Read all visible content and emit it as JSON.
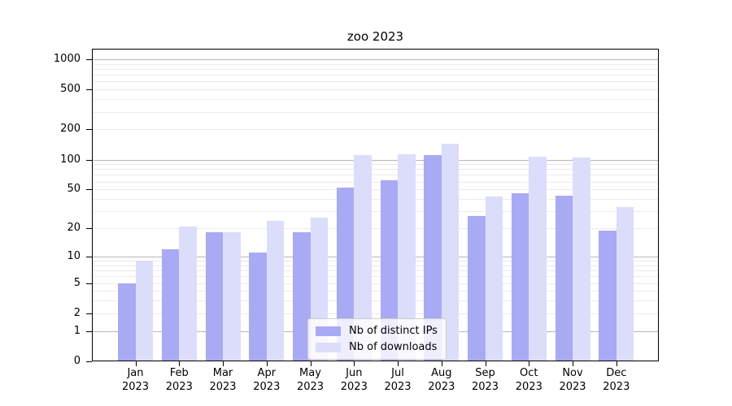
{
  "title": "zoo 2023",
  "legend": {
    "items": [
      {
        "label": "Nb of distinct IPs",
        "color": "#a9aaf4"
      },
      {
        "label": "Nb of downloads",
        "color": "#dcddfa"
      }
    ]
  },
  "chart_data": {
    "type": "bar",
    "title": "zoo 2023",
    "categories": [
      "Jan 2023",
      "Feb 2023",
      "Mar 2023",
      "Apr 2023",
      "May 2023",
      "Jun 2023",
      "Jul 2023",
      "Aug 2023",
      "Sep 2023",
      "Oct 2023",
      "Nov 2023",
      "Dec 2023"
    ],
    "series": [
      {
        "name": "Nb of distinct IPs",
        "color": "#a9aaf4",
        "values": [
          5,
          12,
          18,
          11,
          18,
          52,
          62,
          110,
          27,
          46,
          43,
          19
        ]
      },
      {
        "name": "Nb of downloads",
        "color": "#dcddfa",
        "values": [
          9,
          21,
          18,
          24,
          26,
          110,
          112,
          145,
          42,
          106,
          104,
          33
        ]
      }
    ],
    "xlabel": "",
    "ylabel": "",
    "yscale": "log1p",
    "ylim": [
      0,
      1300
    ],
    "yticks": [
      0,
      1,
      2,
      5,
      10,
      20,
      50,
      100,
      200,
      500,
      1000
    ],
    "major_gridlines": [
      1,
      10,
      100,
      1000
    ],
    "minor_gridline_bases": [
      1,
      10,
      100
    ],
    "grid": "major+minor",
    "legend_position": "lower center"
  },
  "colors": {
    "background": "#ffffff",
    "axis": "#000000",
    "text": "#000000",
    "major_grid": "#b6b6b6",
    "minor_grid": "#eaeaea"
  }
}
